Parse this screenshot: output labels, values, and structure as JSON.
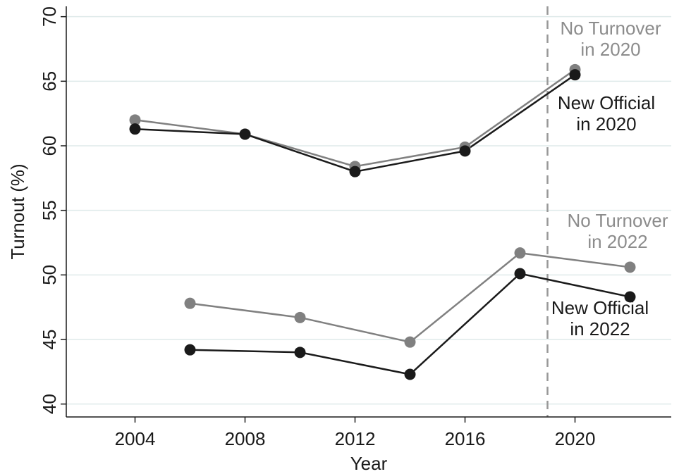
{
  "chart_data": {
    "type": "line",
    "xlabel": "Year",
    "ylabel": "Turnout (%)",
    "xlim": [
      2001.5,
      2023.5
    ],
    "ylim": [
      39,
      70.8
    ],
    "xticks": [
      "2004",
      "2008",
      "2012",
      "2016",
      "2020"
    ],
    "yticks": [
      "40",
      "45",
      "50",
      "55",
      "60",
      "65",
      "70"
    ],
    "grid": "horizontal",
    "reference_line": {
      "x": 2019,
      "style": "dashed",
      "color": "#999999"
    },
    "series": [
      {
        "group": "2020",
        "color": "#808080",
        "x": [
          2004,
          2008,
          2012,
          2016,
          2020
        ],
        "y": [
          62.0,
          60.9,
          58.4,
          59.9,
          65.9
        ]
      },
      {
        "group": "2020",
        "color": "#1a1a1a",
        "x": [
          2004,
          2008,
          2012,
          2016,
          2020
        ],
        "y": [
          61.3,
          60.9,
          58.0,
          59.6,
          65.5
        ]
      },
      {
        "group": "2022",
        "color": "#808080",
        "x": [
          2006,
          2010,
          2014,
          2018,
          2022
        ],
        "y": [
          47.8,
          46.7,
          44.8,
          51.7,
          50.6
        ]
      },
      {
        "group": "2022",
        "color": "#1a1a1a",
        "x": [
          2006,
          2010,
          2014,
          2018,
          2022
        ],
        "y": [
          44.2,
          44.0,
          42.3,
          50.1,
          48.3
        ]
      }
    ],
    "annotations": [
      {
        "lines": [
          "No Turnover",
          "in 2020"
        ],
        "color": "#8c8c8c"
      },
      {
        "lines": [
          "New Official",
          "in 2020"
        ],
        "color": "#1a1a1a"
      },
      {
        "lines": [
          "No Turnover",
          "in 2022"
        ],
        "color": "#8c8c8c"
      },
      {
        "lines": [
          "New Official",
          "in 2022"
        ],
        "color": "#1a1a1a"
      }
    ],
    "colors": {
      "grid": "#dfeaea",
      "axis": "#1a1a1a"
    }
  }
}
